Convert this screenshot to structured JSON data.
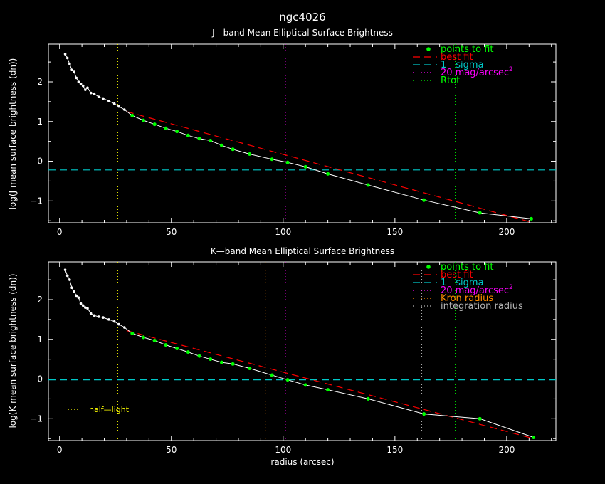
{
  "title": "ngc4026",
  "xlabel": "radius (arcsec)",
  "colors": {
    "points": "#00ff00",
    "profile": "#ffffff",
    "best_fit": "#ff0000",
    "one_sigma": "#00c8c8",
    "mag20": "#ff00ff",
    "rtot": "#00ff00",
    "kron": "#ff8c00",
    "integration": "#b4b4b4",
    "half_light": "#ffff00"
  },
  "chart_data": [
    {
      "type": "line",
      "title": "J—band Mean Elliptical Surface Brightness",
      "ylabel": "log(J mean surface brightness (dn))",
      "xlim": [
        -5,
        222
      ],
      "ylim": [
        -1.55,
        2.95
      ],
      "xticks": [
        0,
        50,
        100,
        150,
        200
      ],
      "yticks": [
        -1,
        0,
        1,
        2
      ],
      "legend_placement": "top-right",
      "legend": [
        "points to fit",
        "best fit",
        "1—sigma",
        "20 mag/arcsec",
        "Rtot"
      ],
      "legend_superscript": "2",
      "profile": {
        "x": [
          2.5,
          3.5,
          4.5,
          5.5,
          6.5,
          7.5,
          8.5,
          9.5,
          10.5,
          11.5,
          12.5,
          14,
          15.5,
          17.5,
          19.5,
          22,
          24.5,
          26.5,
          29,
          32.5,
          37.5,
          42.5,
          47.5,
          52.5,
          57.5,
          62.5,
          67.5,
          72.5,
          77.5,
          85,
          95,
          102,
          110,
          120,
          138,
          163,
          188,
          211
        ],
        "y": [
          2.7,
          2.6,
          2.45,
          2.3,
          2.25,
          2.1,
          2.0,
          1.95,
          1.9,
          1.8,
          1.85,
          1.72,
          1.7,
          1.62,
          1.58,
          1.52,
          1.45,
          1.38,
          1.3,
          1.15,
          1.03,
          0.93,
          0.83,
          0.75,
          0.65,
          0.57,
          0.52,
          0.4,
          0.3,
          0.18,
          0.05,
          -0.03,
          -0.14,
          -0.32,
          -0.6,
          -0.98,
          -1.3,
          -1.45
        ]
      },
      "fit_points": {
        "x": [
          32.5,
          37.5,
          42.5,
          47.5,
          52.5,
          57.5,
          62.5,
          67.5,
          72.5,
          77.5,
          85,
          95,
          102,
          110,
          120,
          138,
          163,
          188,
          211
        ],
        "y": [
          1.15,
          1.03,
          0.93,
          0.83,
          0.75,
          0.65,
          0.57,
          0.52,
          0.4,
          0.3,
          0.18,
          0.05,
          -0.03,
          -0.14,
          -0.32,
          -0.6,
          -0.98,
          -1.3,
          -1.45
        ]
      },
      "best_fit": {
        "x": [
          30,
          210
        ],
        "y": [
          1.25,
          -1.52
        ]
      },
      "one_sigma_y": -0.22,
      "vlines": [
        {
          "x": 26,
          "kind": "half_light"
        },
        {
          "x": 101,
          "kind": "mag20"
        },
        {
          "x": 177,
          "kind": "rtot"
        }
      ]
    },
    {
      "type": "line",
      "title": "K—band Mean Elliptical Surface Brightness",
      "ylabel": "log(K mean surface brightness (dn))",
      "xlim": [
        -5,
        222
      ],
      "ylim": [
        -1.55,
        2.95
      ],
      "xticks": [
        0,
        50,
        100,
        150,
        200
      ],
      "yticks": [
        -1,
        0,
        1,
        2
      ],
      "legend_placement": "top-right",
      "legend": [
        "points to fit",
        "best fit",
        "1—sigma",
        "20 mag/arcsec",
        "Kron radius",
        "integration radius"
      ],
      "legend_superscript": "2",
      "annotation": "half—light",
      "profile": {
        "x": [
          2.5,
          3.5,
          4.5,
          5.5,
          6.5,
          7.5,
          8.5,
          9.5,
          10.5,
          11.5,
          12.5,
          14,
          15.5,
          17.5,
          19.5,
          22,
          24.5,
          26.5,
          29,
          32.5,
          37.5,
          42.5,
          47.5,
          52.5,
          57.5,
          62.5,
          67.5,
          72.5,
          77.5,
          85,
          95,
          102,
          110,
          120,
          138,
          163,
          188,
          212
        ],
        "y": [
          2.75,
          2.6,
          2.5,
          2.3,
          2.2,
          2.1,
          2.05,
          1.9,
          1.85,
          1.8,
          1.78,
          1.65,
          1.6,
          1.57,
          1.55,
          1.5,
          1.45,
          1.38,
          1.3,
          1.15,
          1.05,
          0.97,
          0.86,
          0.77,
          0.68,
          0.58,
          0.5,
          0.42,
          0.38,
          0.27,
          0.1,
          -0.02,
          -0.15,
          -0.27,
          -0.5,
          -0.88,
          -1.0,
          -1.47
        ]
      },
      "fit_points": {
        "x": [
          32.5,
          37.5,
          42.5,
          47.5,
          52.5,
          57.5,
          62.5,
          67.5,
          72.5,
          77.5,
          85,
          95,
          102,
          110,
          120,
          138,
          163,
          188,
          212
        ],
        "y": [
          1.15,
          1.05,
          0.97,
          0.86,
          0.77,
          0.68,
          0.58,
          0.5,
          0.42,
          0.38,
          0.27,
          0.1,
          -0.02,
          -0.15,
          -0.27,
          -0.5,
          -0.88,
          -1.0,
          -1.47
        ]
      },
      "best_fit": {
        "x": [
          30,
          212
        ],
        "y": [
          1.22,
          -1.5
        ]
      },
      "one_sigma_y": -0.02,
      "vlines": [
        {
          "x": 26,
          "kind": "half_light"
        },
        {
          "x": 92,
          "kind": "kron"
        },
        {
          "x": 101,
          "kind": "mag20"
        },
        {
          "x": 162,
          "kind": "integration"
        },
        {
          "x": 177,
          "kind": "rtot"
        }
      ]
    }
  ]
}
